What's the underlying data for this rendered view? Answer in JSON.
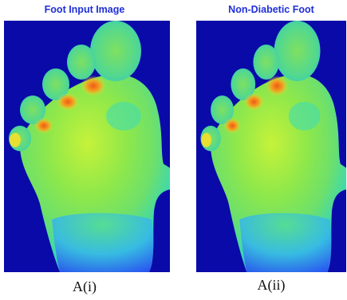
{
  "panels": [
    {
      "title": "Foot Input Image",
      "caption": "A(i)"
    },
    {
      "title": "Non-Diabetic Foot",
      "caption": "A(ii)"
    }
  ]
}
